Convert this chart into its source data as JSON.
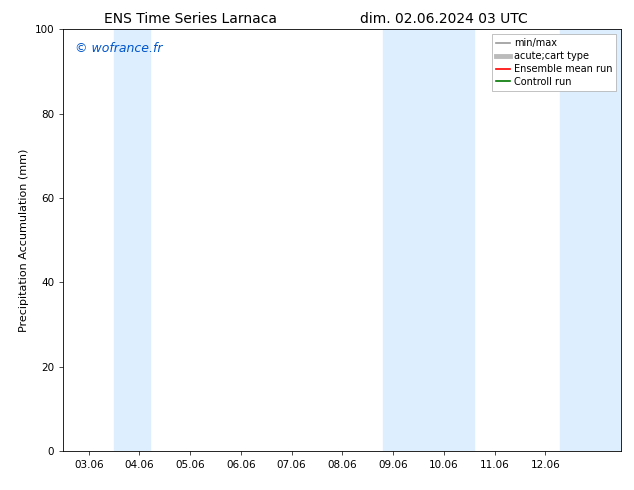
{
  "title_left": "ENS Time Series Larnaca",
  "title_right": "dim. 02.06.2024 03 UTC",
  "ylabel": "Precipitation Accumulation (mm)",
  "ylim": [
    0,
    100
  ],
  "yticks": [
    0,
    20,
    40,
    60,
    80,
    100
  ],
  "background_color": "#ffffff",
  "plot_bg_color": "#ffffff",
  "watermark": "© wofrance.fr",
  "watermark_color": "#0055cc",
  "shaded_bands": [
    {
      "xmin": 2.5,
      "xmax": 3.2,
      "color": "#ddeeff"
    },
    {
      "xmin": 7.8,
      "xmax": 9.6,
      "color": "#ddeeff"
    },
    {
      "xmin": 11.3,
      "xmax": 12.5,
      "color": "#ddeeff"
    }
  ],
  "x_tick_labels": [
    "03.06",
    "04.06",
    "05.06",
    "06.06",
    "07.06",
    "08.06",
    "09.06",
    "10.06",
    "11.06",
    "12.06"
  ],
  "x_tick_positions": [
    2,
    3,
    4,
    5,
    6,
    7,
    8,
    9,
    10,
    11
  ],
  "xmin": 1.5,
  "xmax": 12.5,
  "legend_items": [
    {
      "label": "min/max",
      "color": "#999999",
      "lw": 1.2,
      "ls": "-"
    },
    {
      "label": "acute;cart type",
      "color": "#bbbbbb",
      "lw": 3.5,
      "ls": "-"
    },
    {
      "label": "Ensemble mean run",
      "color": "#ff0000",
      "lw": 1.2,
      "ls": "-"
    },
    {
      "label": "Controll run",
      "color": "#007700",
      "lw": 1.2,
      "ls": "-"
    }
  ],
  "title_fontsize": 10,
  "tick_fontsize": 7.5,
  "ylabel_fontsize": 8,
  "watermark_fontsize": 9,
  "legend_fontsize": 7
}
